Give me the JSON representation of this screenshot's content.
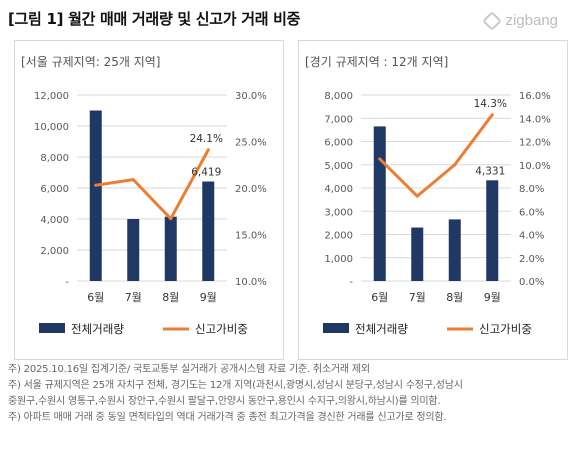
{
  "figure_title": "[그림 1] 월간 매매 거래량 및 신고가 거래 비중",
  "logo_text": "zigbang",
  "notes": [
    "주) 2025.10.16일 집계기준/ 국토교통부 실거래가 공개시스템 자료 기준. 취소거래 제외",
    "주) 서울 규제지역은 25개 자치구 전체, 경기도는 12개 지역(과천시,광명시,성남시 분당구,성남시 수정구,성남시",
    "중원구,수원시 영통구,수원시 장안구,수원시 팔달구,안양시 동안구,용인시 수지구,의왕시,하남시)를 의미함.",
    "주) 아파트 매매 거래 중 동일 면적타입의 역대 거래가격 중 종전 최고가격을 경신한 거래를 신고가로 정의함."
  ],
  "colors": {
    "bar": "#203864",
    "line": "#ed7d31",
    "grid": "#d9d9d9",
    "axis_text": "#595959"
  },
  "chart_data": [
    {
      "type": "bar+line",
      "title": "[서울 규제지역: 25개 지역]",
      "categories": [
        "6월",
        "7월",
        "8월",
        "9월"
      ],
      "series": [
        {
          "name": "전체거래량",
          "kind": "bar",
          "axis": "left",
          "values": [
            11000,
            4000,
            4150,
            6419
          ]
        },
        {
          "name": "신고가비중",
          "kind": "line",
          "axis": "right",
          "values": [
            20.3,
            20.9,
            16.7,
            24.1
          ]
        }
      ],
      "left_axis": {
        "min": 0,
        "max": 12000,
        "ticks": [
          "12,000",
          "10,000",
          "8,000",
          "6,000",
          "4,000",
          "2,000",
          "-"
        ]
      },
      "right_axis": {
        "min": 10,
        "max": 30,
        "ticks": [
          "30.0%",
          "25.0%",
          "20.0%",
          "15.0%",
          "10.0%"
        ]
      },
      "data_labels": [
        {
          "series": 0,
          "index": 3,
          "text": "6,419"
        },
        {
          "series": 1,
          "index": 3,
          "text": "24.1%"
        }
      ],
      "grid": true,
      "legend_placement": "bottom"
    },
    {
      "type": "bar+line",
      "title": "[경기 규제지역 : 12개 지역]",
      "categories": [
        "6월",
        "7월",
        "8월",
        "9월"
      ],
      "series": [
        {
          "name": "전체거래량",
          "kind": "bar",
          "axis": "left",
          "values": [
            6650,
            2300,
            2650,
            4331
          ]
        },
        {
          "name": "신고가비중",
          "kind": "line",
          "axis": "right",
          "values": [
            10.5,
            7.3,
            10.0,
            14.3
          ]
        }
      ],
      "left_axis": {
        "min": 0,
        "max": 8000,
        "ticks": [
          "8,000",
          "7,000",
          "6,000",
          "5,000",
          "4,000",
          "3,000",
          "2,000",
          "1,000",
          "-"
        ]
      },
      "right_axis": {
        "min": 0,
        "max": 16,
        "ticks": [
          "16.0%",
          "14.0%",
          "12.0%",
          "10.0%",
          "8.0%",
          "6.0%",
          "4.0%",
          "2.0%",
          "0.0%"
        ]
      },
      "data_labels": [
        {
          "series": 0,
          "index": 3,
          "text": "4,331"
        },
        {
          "series": 1,
          "index": 3,
          "text": "14.3%"
        }
      ],
      "grid": true,
      "legend_placement": "bottom"
    }
  ]
}
